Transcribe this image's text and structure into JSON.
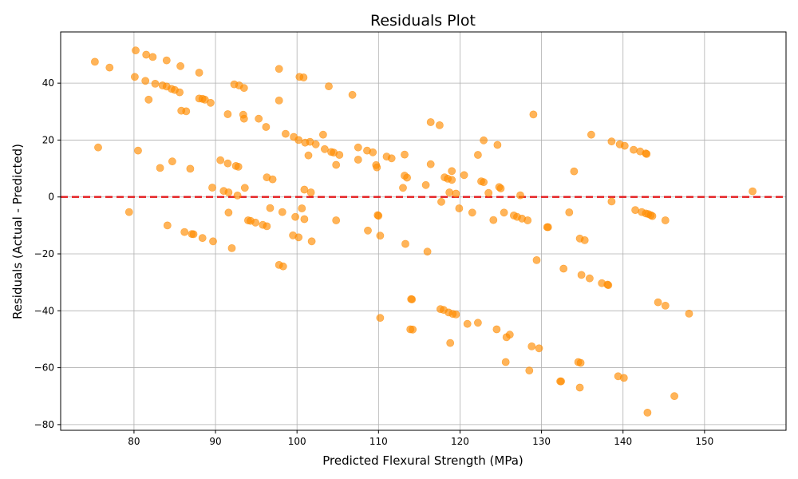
{
  "chart_data": {
    "type": "scatter",
    "title": "Residuals Plot",
    "xlabel": "Predicted Flexural Strength (MPa)",
    "ylabel": "Residuals (Actual - Predicted)",
    "xlim": [
      71,
      160
    ],
    "ylim": [
      -82,
      58
    ],
    "xticks": [
      80,
      90,
      100,
      110,
      120,
      130,
      140,
      150
    ],
    "yticks": [
      -80,
      -60,
      -40,
      -20,
      0,
      20,
      40
    ],
    "grid": true,
    "point_color": "#ff8c00",
    "point_opacity": 0.65,
    "reference_line": {
      "y": 0,
      "color": "#e31a1c",
      "style": "dashed"
    },
    "points": [
      [
        75.2,
        47.5
      ],
      [
        77.0,
        45.5
      ],
      [
        80.2,
        51.5
      ],
      [
        81.5,
        50.0
      ],
      [
        82.3,
        49.2
      ],
      [
        84.0,
        48.0
      ],
      [
        85.7,
        46.0
      ],
      [
        88.0,
        43.7
      ],
      [
        97.8,
        45.0
      ],
      [
        80.1,
        42.2
      ],
      [
        81.4,
        40.8
      ],
      [
        82.6,
        39.8
      ],
      [
        83.5,
        39.2
      ],
      [
        84.0,
        38.8
      ],
      [
        84.6,
        38.0
      ],
      [
        85.0,
        37.6
      ],
      [
        85.6,
        36.8
      ],
      [
        92.3,
        39.6
      ],
      [
        92.9,
        39.2
      ],
      [
        93.5,
        38.3
      ],
      [
        100.3,
        42.2
      ],
      [
        100.8,
        42.0
      ],
      [
        103.9,
        38.9
      ],
      [
        106.8,
        35.9
      ],
      [
        81.8,
        34.2
      ],
      [
        88.0,
        34.6
      ],
      [
        88.4,
        34.5
      ],
      [
        88.7,
        34.2
      ],
      [
        89.4,
        33.1
      ],
      [
        97.8,
        33.9
      ],
      [
        85.8,
        30.3
      ],
      [
        86.4,
        30.1
      ],
      [
        91.5,
        29.1
      ],
      [
        93.4,
        28.9
      ],
      [
        93.5,
        27.5
      ],
      [
        95.3,
        27.5
      ],
      [
        96.2,
        24.6
      ],
      [
        116.4,
        26.3
      ],
      [
        117.5,
        25.2
      ],
      [
        129.0,
        29.0
      ],
      [
        98.6,
        22.2
      ],
      [
        99.6,
        21.1
      ],
      [
        100.2,
        20.0
      ],
      [
        101.0,
        19.1
      ],
      [
        101.6,
        19.4
      ],
      [
        102.3,
        18.5
      ],
      [
        103.2,
        21.9
      ],
      [
        103.4,
        16.8
      ],
      [
        104.2,
        15.8
      ],
      [
        104.5,
        15.6
      ],
      [
        105.2,
        14.8
      ],
      [
        101.4,
        14.6
      ],
      [
        107.5,
        17.4
      ],
      [
        108.6,
        16.3
      ],
      [
        109.3,
        15.7
      ],
      [
        111.0,
        14.2
      ],
      [
        111.6,
        13.6
      ],
      [
        113.2,
        14.9
      ],
      [
        122.9,
        19.9
      ],
      [
        124.6,
        18.3
      ],
      [
        122.2,
        14.8
      ],
      [
        136.1,
        21.9
      ],
      [
        138.6,
        19.5
      ],
      [
        139.6,
        18.5
      ],
      [
        140.2,
        18.0
      ],
      [
        141.3,
        16.6
      ],
      [
        142.1,
        16.0
      ],
      [
        142.8,
        15.3
      ],
      [
        142.9,
        15.1
      ],
      [
        75.6,
        17.4
      ],
      [
        80.5,
        16.3
      ],
      [
        84.7,
        12.5
      ],
      [
        83.2,
        10.2
      ],
      [
        86.9,
        9.9
      ],
      [
        90.6,
        12.9
      ],
      [
        91.5,
        11.8
      ],
      [
        92.5,
        10.9
      ],
      [
        92.8,
        10.6
      ],
      [
        104.8,
        11.3
      ],
      [
        107.5,
        13.1
      ],
      [
        109.7,
        11.2
      ],
      [
        109.8,
        10.4
      ],
      [
        116.4,
        11.5
      ],
      [
        119.0,
        9.1
      ],
      [
        120.5,
        7.7
      ],
      [
        134.0,
        9.0
      ],
      [
        89.6,
        3.3
      ],
      [
        91.0,
        2.1
      ],
      [
        91.6,
        1.6
      ],
      [
        92.7,
        0.5
      ],
      [
        93.6,
        3.2
      ],
      [
        96.3,
        6.9
      ],
      [
        97.0,
        6.2
      ],
      [
        100.9,
        2.6
      ],
      [
        101.7,
        1.6
      ],
      [
        113.2,
        7.5
      ],
      [
        113.5,
        6.8
      ],
      [
        113.0,
        3.2
      ],
      [
        115.8,
        4.2
      ],
      [
        118.1,
        6.9
      ],
      [
        118.5,
        6.4
      ],
      [
        119.0,
        6.0
      ],
      [
        118.7,
        1.6
      ],
      [
        119.5,
        1.2
      ],
      [
        117.7,
        -1.7
      ],
      [
        122.6,
        5.5
      ],
      [
        122.9,
        5.2
      ],
      [
        123.5,
        1.4
      ],
      [
        124.8,
        3.5
      ],
      [
        125.0,
        3.0
      ],
      [
        127.4,
        0.6
      ],
      [
        155.9,
        2.0
      ],
      [
        79.4,
        -5.3
      ],
      [
        91.6,
        -5.5
      ],
      [
        96.7,
        -3.9
      ],
      [
        98.2,
        -5.3
      ],
      [
        99.8,
        -7.0
      ],
      [
        100.6,
        -4.0
      ],
      [
        100.9,
        -7.8
      ],
      [
        104.8,
        -8.2
      ],
      [
        109.9,
        -6.4
      ],
      [
        110.0,
        -6.6
      ],
      [
        119.9,
        -4.0
      ],
      [
        121.5,
        -5.5
      ],
      [
        124.1,
        -8.1
      ],
      [
        125.4,
        -5.5
      ],
      [
        126.6,
        -6.5
      ],
      [
        127.0,
        -7.0
      ],
      [
        127.6,
        -7.6
      ],
      [
        128.3,
        -8.2
      ],
      [
        133.4,
        -5.4
      ],
      [
        138.6,
        -1.6
      ],
      [
        141.5,
        -4.6
      ],
      [
        142.3,
        -5.3
      ],
      [
        142.8,
        -5.8
      ],
      [
        143.1,
        -6.0
      ],
      [
        143.4,
        -6.4
      ],
      [
        143.6,
        -6.7
      ],
      [
        145.2,
        -8.2
      ],
      [
        94.0,
        -8.2
      ],
      [
        94.3,
        -8.4
      ],
      [
        94.9,
        -9.0
      ],
      [
        95.8,
        -9.8
      ],
      [
        96.3,
        -10.3
      ],
      [
        84.1,
        -10.0
      ],
      [
        86.2,
        -12.3
      ],
      [
        87.1,
        -13.0
      ],
      [
        87.3,
        -13.1
      ],
      [
        88.4,
        -14.4
      ],
      [
        89.7,
        -15.6
      ],
      [
        92.0,
        -18.0
      ],
      [
        99.5,
        -13.5
      ],
      [
        100.2,
        -14.2
      ],
      [
        101.8,
        -15.6
      ],
      [
        108.7,
        -11.8
      ],
      [
        110.2,
        -13.6
      ],
      [
        113.3,
        -16.5
      ],
      [
        116.0,
        -19.2
      ],
      [
        130.7,
        -10.6
      ],
      [
        130.8,
        -10.6
      ],
      [
        134.7,
        -14.6
      ],
      [
        135.3,
        -15.2
      ],
      [
        97.8,
        -23.9
      ],
      [
        98.3,
        -24.4
      ],
      [
        129.4,
        -22.2
      ],
      [
        132.7,
        -25.2
      ],
      [
        134.9,
        -27.4
      ],
      [
        135.9,
        -28.6
      ],
      [
        137.4,
        -30.3
      ],
      [
        138.1,
        -30.8
      ],
      [
        138.2,
        -31.0
      ],
      [
        114.0,
        -35.9
      ],
      [
        114.1,
        -36.0
      ],
      [
        117.6,
        -39.4
      ],
      [
        118.0,
        -39.7
      ],
      [
        118.6,
        -40.6
      ],
      [
        119.1,
        -41.1
      ],
      [
        119.5,
        -41.3
      ],
      [
        110.2,
        -42.5
      ],
      [
        120.9,
        -44.6
      ],
      [
        122.2,
        -44.2
      ],
      [
        124.5,
        -46.5
      ],
      [
        113.9,
        -46.5
      ],
      [
        114.2,
        -46.6
      ],
      [
        126.1,
        -48.4
      ],
      [
        125.7,
        -49.3
      ],
      [
        118.8,
        -51.3
      ],
      [
        128.8,
        -52.5
      ],
      [
        129.7,
        -53.2
      ],
      [
        144.3,
        -37.0
      ],
      [
        145.2,
        -38.2
      ],
      [
        148.1,
        -41.0
      ],
      [
        125.6,
        -58.0
      ],
      [
        128.5,
        -61.0
      ],
      [
        134.5,
        -58.0
      ],
      [
        134.8,
        -58.3
      ],
      [
        132.3,
        -64.8
      ],
      [
        132.4,
        -64.8
      ],
      [
        134.7,
        -67.0
      ],
      [
        139.4,
        -63.0
      ],
      [
        140.1,
        -63.6
      ],
      [
        146.3,
        -70.0
      ],
      [
        143.0,
        -75.8
      ]
    ]
  }
}
